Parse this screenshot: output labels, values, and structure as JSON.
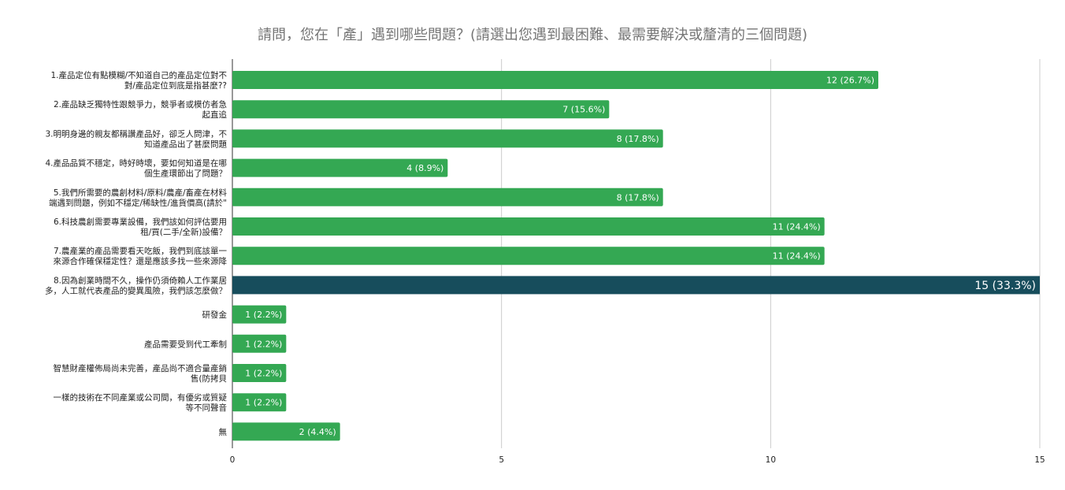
{
  "chart_data": {
    "type": "bar",
    "orientation": "horizontal",
    "title": "請問，您在「產」遇到哪些問題？(請選出您遇到最困難、最需要解決或釐清的三個問題)",
    "categories": [
      [
        "1.產品定位有點模糊/不知道自己的產品定位對不",
        "對/產品定位到底是指甚麼??"
      ],
      [
        "2.產品缺乏獨特性跟競爭力，競爭者或模仿者急",
        "起直追"
      ],
      [
        "3.明明身邊的親友都稱讚產品好，卻乏人問津，不",
        "知道產品出了甚麼問題"
      ],
      [
        "4.產品品質不穩定，時好時壞，要如何知道是在哪",
        "個生產環節出了問題？"
      ],
      [
        "5.我們所需要的農創材料/原料/農產/畜產在材料",
        "端遇到問題，例如不穩定/稀缺性/進貨價高(請於\""
      ],
      [
        "6.科技農創需要專業設備，我們該如何評估要用",
        "租/買(二手/全新)設備？"
      ],
      [
        "7.農產業的產品需要看天吃飯，我們到底該單一",
        "來源合作確保穩定性？還是應該多找一些來源降"
      ],
      [
        "8.因為創業時間不久，操作仍須倚賴人工作業居",
        "多，人工就代表產品的變異風險，我們該怎麼做？"
      ],
      [
        "研發金"
      ],
      [
        "產品需要受到代工牽制"
      ],
      [
        "智慧財產權佈局尚未完善，產品尚不適合量產銷",
        "售(防拷貝"
      ],
      [
        "一樣的技術在不同產業或公司間，有優劣或質疑",
        "等不同聲音"
      ],
      [
        "無"
      ]
    ],
    "values": [
      12,
      7,
      8,
      4,
      8,
      11,
      11,
      15,
      1,
      1,
      1,
      1,
      2
    ],
    "value_labels": [
      "12 (26.7%)",
      "7 (15.6%)",
      "8 (17.8%)",
      "4 (8.9%)",
      "8 (17.8%)",
      "11 (24.4%)",
      "11 (24.4%)",
      "15 (33.3%)",
      "1 (2.2%)",
      "1 (2.2%)",
      "1 (2.2%)",
      "1 (2.2%)",
      "2 (4.4%)"
    ],
    "highlight_index": 7,
    "xlim": [
      0,
      15
    ],
    "xticks": [
      0,
      5,
      10,
      15
    ],
    "xtick_labels": [
      "0",
      "5",
      "10",
      "15"
    ],
    "grid": true,
    "legend": "none",
    "colors": {
      "bar": "#34a853",
      "highlight": "#174d5c",
      "grid": "#cccccc",
      "title": "#757575"
    }
  }
}
